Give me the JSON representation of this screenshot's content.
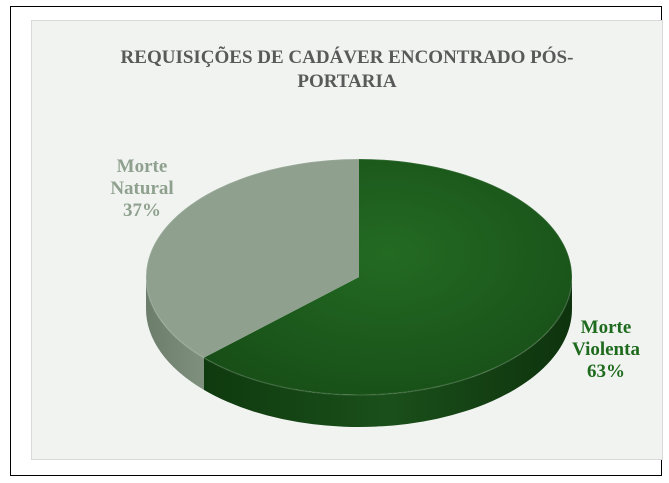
{
  "chart_data": {
    "type": "pie",
    "title_line1": "REQUISIÇÕES DE CADÁVER ENCONTRADO PÓS-",
    "title_line2": "PORTARIA",
    "slices": [
      {
        "label_line1": "Morte",
        "label_line2": "Violenta",
        "percent_label": "63%",
        "value": 63,
        "color": "#1d5b1d",
        "label_color": "#1e6b1e"
      },
      {
        "label_line1": "Morte",
        "label_line2": "Natural",
        "percent_label": "37%",
        "value": 37,
        "color": "#8fa18e",
        "label_color": "#8fa18e"
      }
    ],
    "style": "3d-tilted",
    "legend": "none"
  }
}
